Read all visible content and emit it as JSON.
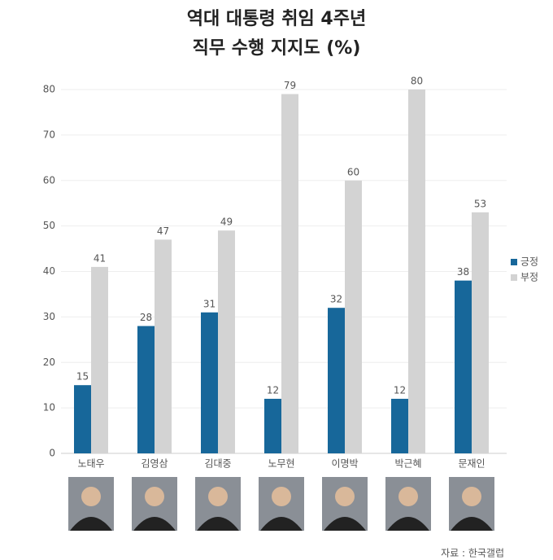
{
  "chart_data": {
    "type": "bar",
    "title": [
      "역대 대통령 취임 4주년",
      "직무 수행 지지도 (%)"
    ],
    "categories": [
      "노태우",
      "김영삼",
      "김대중",
      "노무현",
      "이명박",
      "박근혜",
      "문재인"
    ],
    "series": [
      {
        "name": "긍정",
        "color": "#17679a",
        "values": [
          15,
          28,
          31,
          12,
          32,
          12,
          38
        ]
      },
      {
        "name": "부정",
        "color": "#d3d3d3",
        "values": [
          41,
          47,
          49,
          79,
          60,
          80,
          53
        ]
      }
    ],
    "ylim": [
      0,
      80
    ],
    "yticks": [
      0,
      10,
      20,
      30,
      40,
      50,
      60,
      70,
      80
    ],
    "grid": true,
    "legend": "right",
    "source": "자료 : 한국갤럽"
  }
}
